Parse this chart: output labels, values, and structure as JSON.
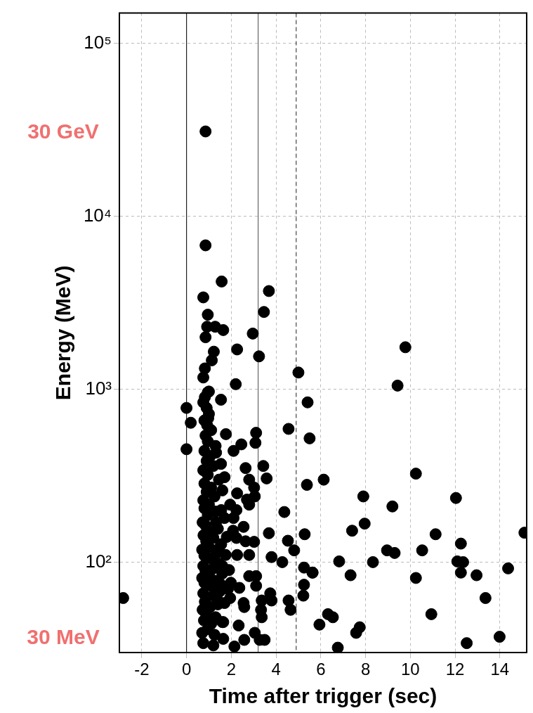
{
  "chart_data": {
    "type": "scatter",
    "xlabel": "Time after trigger (sec)",
    "ylabel": "Energy (MeV)",
    "log": "y",
    "grid": true,
    "legend": false,
    "marker": "circle",
    "xlim": [
      -3,
      15.2
    ],
    "xticks": [
      -2,
      0,
      2,
      4,
      6,
      8,
      10,
      12,
      14
    ],
    "ylim": [
      30,
      150000
    ],
    "yticks": [
      {
        "value": 100,
        "label": "10²"
      },
      {
        "value": 1000,
        "label": "10³"
      },
      {
        "value": 10000,
        "label": "10⁴"
      },
      {
        "value": 100000,
        "label": "10⁵"
      }
    ],
    "ref_lines": [
      {
        "axis": "x",
        "value": 0,
        "color": "#222222",
        "line_style": "solid"
      },
      {
        "axis": "x",
        "value": 3.2,
        "color": "#666666",
        "line_style": "solid"
      },
      {
        "axis": "x",
        "value": 4.9,
        "color": "#444444",
        "line_style": "dashed"
      }
    ],
    "annotations": [
      "30 GeV",
      "30 MeV"
    ],
    "series": [
      {
        "color": "#000000",
        "x": [
          -2.83,
          0,
          0.19,
          0,
          0.85,
          0.85,
          1.57,
          0.75,
          0.95,
          3.68,
          3.46,
          2.96,
          2.26,
          3.24,
          2.2,
          5.0,
          0.92,
          1.28,
          1.64,
          0.85,
          1.22,
          1.13,
          0.82,
          0.75
        ],
        "values": [
          62,
          780,
          640,
          450,
          31000,
          6800,
          4200,
          3400,
          2700,
          3700,
          2800,
          2100,
          1700,
          1550,
          1070,
          1250,
          2300,
          2300,
          2200,
          2000,
          1650,
          1470,
          1320,
          1170
        ]
      },
      {
        "color": "#000000",
        "x": [
          1.0,
          0.75,
          1.54,
          0.97,
          1.76,
          3.11,
          3.08,
          2.45,
          2.1,
          1.32,
          1.54,
          2.64,
          3.43,
          3.58,
          2.8,
          3.02,
          2.26,
          3.05,
          2.7,
          2.8,
          1.95,
          2.23,
          2.1,
          1.32,
          2.55,
          2.08,
          3.68,
          2.23,
          2.64,
          3.02,
          2.8,
          2.26,
          3.8,
          4.28,
          4.37,
          4.56,
          4.53,
          4.81,
          5.41,
          5.5,
          5.38,
          5.28,
          5.25,
          5.63,
          5.25,
          5.22,
          4.56,
          4.65,
          3.74,
          3.8,
          3.36,
          3.33,
          3.36,
          3.11,
          3.11,
          2.8,
          2.58,
          2.33,
          1.64,
          3.05,
          3.49,
          3.27,
          2.58,
          2.14,
          1.64,
          1.98,
          2.36,
          1.95,
          2.55
        ],
        "values": [
          970,
          840,
          870,
          680,
          550,
          560,
          490,
          480,
          440,
          430,
          370,
          350,
          360,
          305,
          300,
          270,
          250,
          240,
          230,
          215,
          215,
          200,
          180,
          170,
          160,
          152,
          147,
          138,
          132,
          131,
          110,
          110,
          107,
          100,
          195,
          590,
          133,
          117,
          840,
          520,
          280,
          145,
          93,
          87,
          74,
          64,
          60,
          53,
          66,
          60,
          60,
          53,
          48,
          83,
          73,
          83,
          55,
          43,
          45,
          39,
          35.5,
          35.5,
          35.5,
          32.5,
          36,
          76,
          71,
          62,
          58
        ]
      },
      {
        "color": "#000000",
        "x": [
          9.78,
          9.43,
          10.25,
          6.13,
          7.9,
          12.04,
          9.2,
          7.4,
          7.96,
          15.1,
          11.13,
          12.26,
          8.96,
          9.3,
          10.53,
          6.82,
          8.33,
          12.1,
          12.36,
          14.37,
          5.63,
          7.33,
          10.25,
          12.26,
          12.96,
          13.36,
          10.94,
          6.32,
          6.54,
          5.94,
          7.74,
          7.58,
          6.76,
          12.52,
          13.99
        ],
        "values": [
          1750,
          1050,
          325,
          300,
          240,
          235,
          210,
          152,
          167,
          148,
          145,
          128,
          117,
          113,
          117,
          101,
          100,
          101,
          100,
          92,
          87,
          84,
          81,
          87,
          84,
          62,
          50,
          50,
          48,
          43.5,
          42,
          39,
          32,
          34,
          37
        ]
      },
      {
        "color": "#000000",
        "x": [
          0.75,
          1.2,
          0.7,
          0.95,
          1.1,
          0.78,
          1.3,
          0.88,
          0.72,
          1.05,
          1.4,
          0.82,
          1.2,
          0.75,
          1.5,
          1.1,
          0.8,
          1.3,
          0.7,
          1.0,
          1.6,
          0.85,
          1.2,
          0.75,
          1.45,
          1.1,
          0.8,
          1.35,
          0.7,
          1.0,
          1.55,
          0.88,
          1.2,
          0.76,
          1.05,
          1.4,
          0.85,
          0.72,
          0.95,
          1.3,
          0.8,
          1.0,
          0.75,
          1.25,
          0.9,
          1.1,
          0.8,
          1.45,
          0.95,
          0.75,
          1.2,
          0.9,
          1.05,
          0.8,
          1.3,
          0.95,
          0.85,
          1.1,
          0.92,
          0.8,
          1.0,
          0.9,
          0.82,
          0.95,
          1.45,
          1.6,
          1.5,
          1.35,
          1.6,
          1.25,
          1.55,
          1.7,
          1.6,
          1.7,
          1.8,
          1.75,
          1.9,
          1.85,
          1.7
        ],
        "values": [
          34,
          33,
          39,
          41,
          44,
          46,
          48,
          50,
          53,
          55,
          57,
          59,
          64,
          66,
          68,
          73,
          76,
          78,
          81,
          84,
          86,
          89,
          92,
          95,
          98,
          105,
          109,
          113,
          118,
          122,
          127,
          132,
          138,
          143,
          150,
          156,
          163,
          170,
          187,
          196,
          205,
          215,
          228,
          240,
          255,
          270,
          285,
          300,
          320,
          340,
          360,
          385,
          410,
          440,
          470,
          500,
          540,
          580,
          620,
          660,
          720,
          780,
          900,
          960,
          120,
          95,
          75,
          62,
          45,
          38,
          200,
          310,
          260,
          180,
          140,
          110,
          90,
          70,
          58
        ]
      }
    ]
  }
}
